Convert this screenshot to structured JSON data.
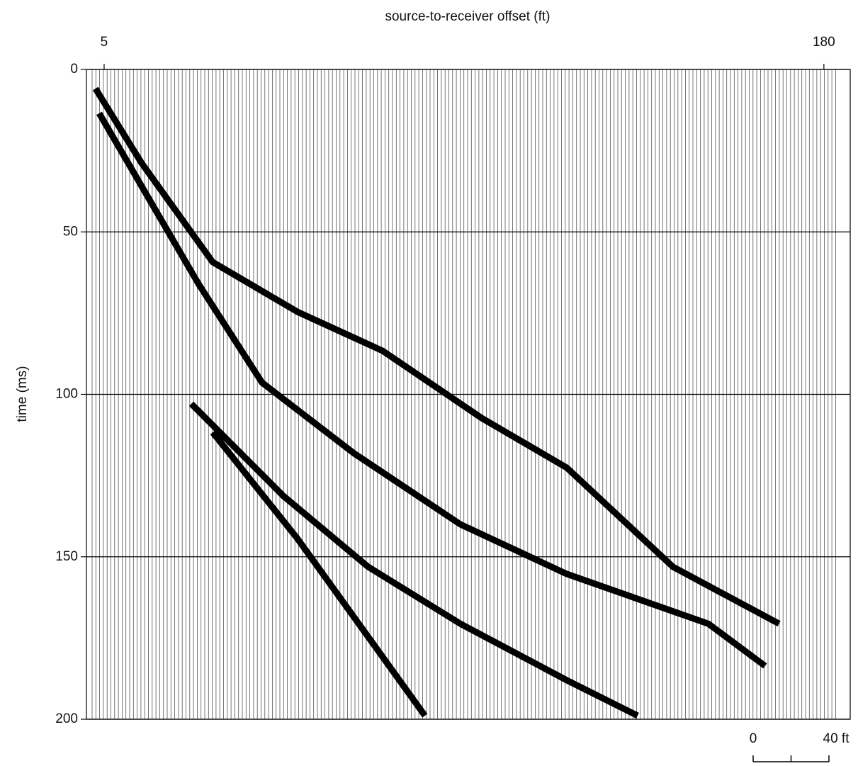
{
  "chart_data": {
    "type": "line",
    "x_label": "source-to-receiver offset (ft)",
    "y_label": "time (ms)",
    "xlim": [
      0.7,
      186.4
    ],
    "xticks": [
      5,
      180
    ],
    "ylim": [
      200,
      0
    ],
    "yticks": [
      0,
      50,
      100,
      150,
      200
    ],
    "grid": true,
    "series": [
      {
        "color": "#000000",
        "x": [
          2.9,
          14.1,
          31.4,
          52.0,
          72.7,
          96.8,
          117.5,
          143.3,
          169.1
        ],
        "values": [
          5.9,
          28.8,
          59.3,
          74.6,
          86.6,
          107.3,
          122.6,
          153.1,
          170.6
        ]
      },
      {
        "color": "#000000",
        "x": [
          3.8,
          27.9,
          43.4,
          65.8,
          91.6,
          117.5,
          151.9,
          165.7
        ],
        "values": [
          13.5,
          65.9,
          96.4,
          118.2,
          140.0,
          155.3,
          170.6,
          183.6
        ]
      },
      {
        "color": "#000000",
        "x": [
          26.2,
          48.6,
          69.2,
          91.6,
          117.5,
          134.7
        ],
        "values": [
          102.9,
          131.3,
          153.1,
          170.6,
          188.0,
          198.9
        ]
      },
      {
        "color": "#000000",
        "x": [
          31.4,
          52.0,
          83.0
        ],
        "values": [
          111.7,
          144.4,
          198.9
        ]
      }
    ],
    "scale_bar": {
      "ticks": [
        {
          "value": 0,
          "label": "0"
        },
        {
          "value": 40,
          "label": "40 ft"
        }
      ]
    }
  }
}
